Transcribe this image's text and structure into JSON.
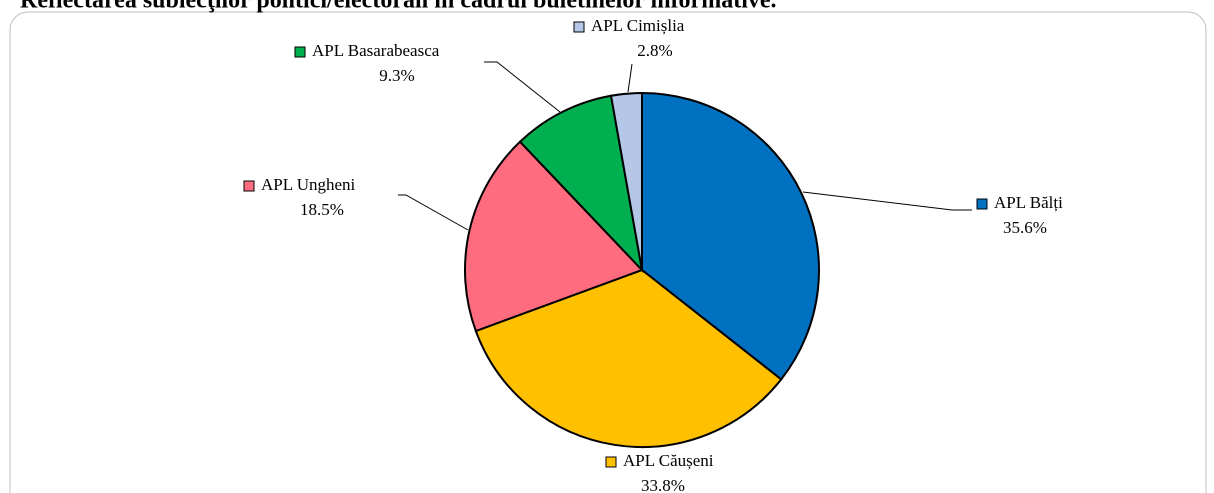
{
  "chart_data": {
    "type": "pie",
    "title": "Reflectarea subiecţilor politici/electorali în cadrul buletinelor informative.",
    "categories": [
      "APL Bălți",
      "APL Căușeni",
      "APL Ungheni",
      "APL Basarabeasca",
      "APL Cimișlia"
    ],
    "values": [
      35.6,
      33.8,
      18.5,
      9.3,
      2.8
    ],
    "value_labels": [
      "35.6%",
      "33.8%",
      "18.5%",
      "9.3%",
      "2.8%"
    ],
    "colors": [
      "#0070c0",
      "#ffc000",
      "#ff6b7f",
      "#00b050",
      "#b4c7e7"
    ]
  }
}
